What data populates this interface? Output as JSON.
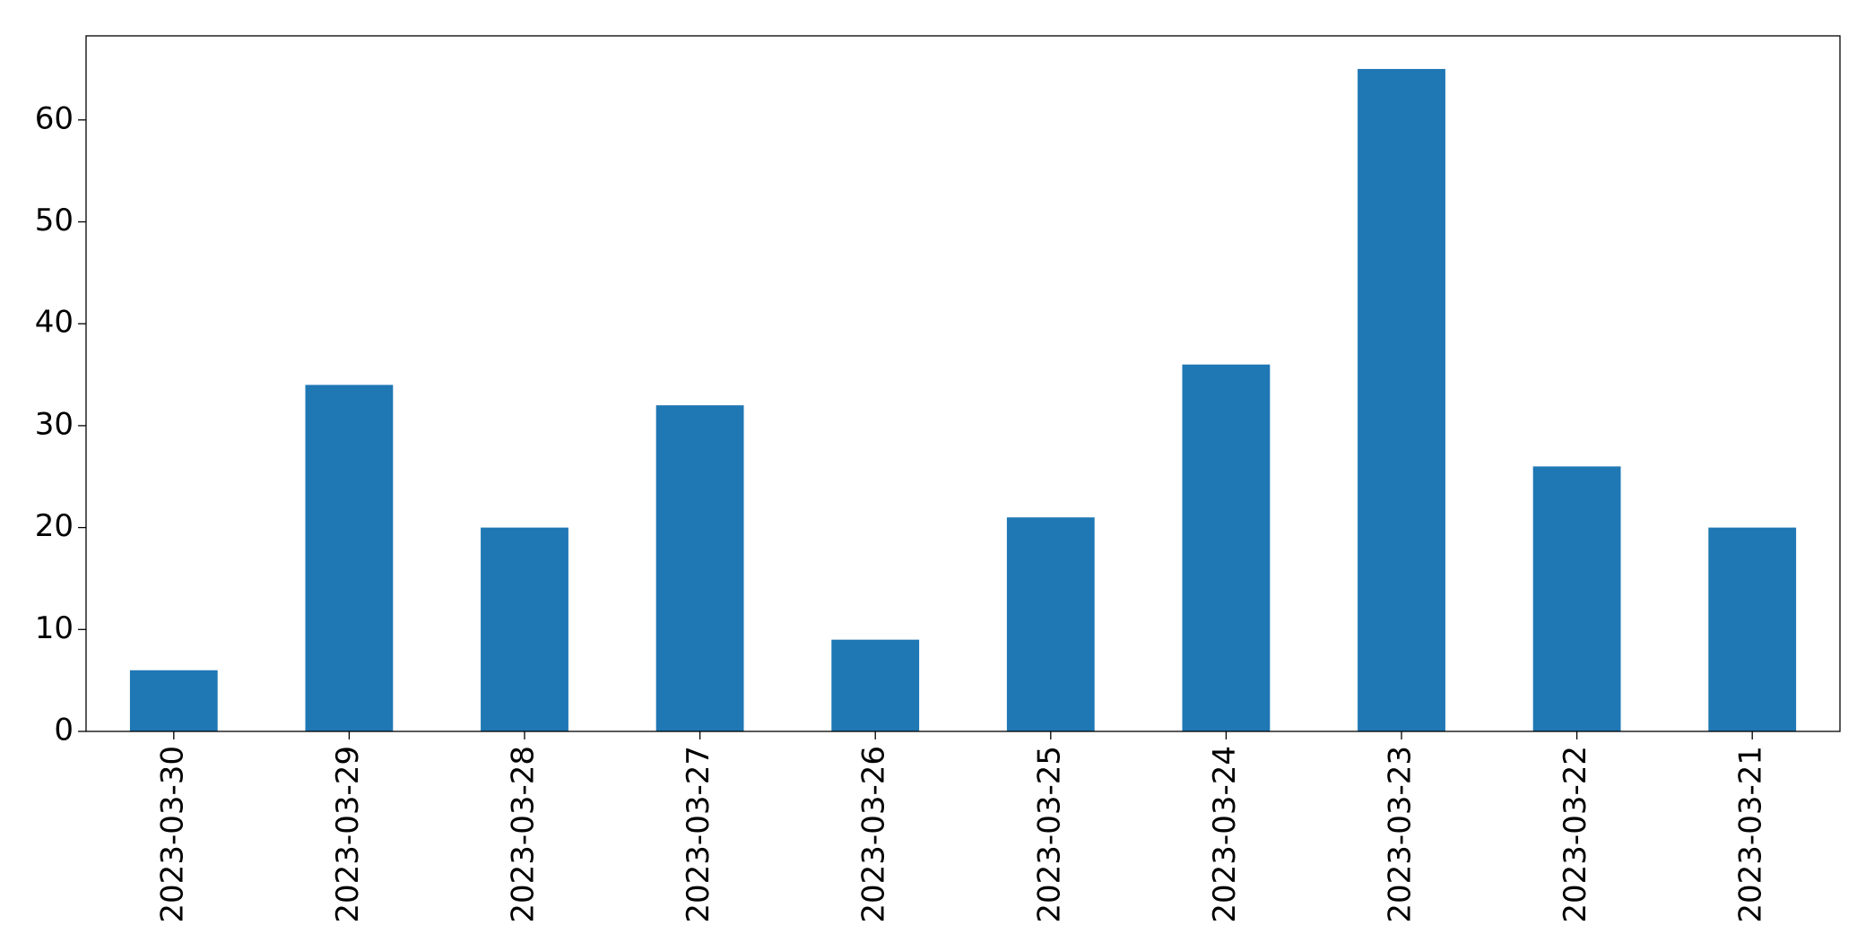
{
  "chart_data": {
    "type": "bar",
    "categories": [
      "2023-03-30",
      "2023-03-29",
      "2023-03-28",
      "2023-03-27",
      "2023-03-26",
      "2023-03-25",
      "2023-03-24",
      "2023-03-23",
      "2023-03-22",
      "2023-03-21"
    ],
    "values": [
      6,
      34,
      20,
      32,
      9,
      21,
      36,
      65,
      26,
      20
    ],
    "color": "#1f77b4",
    "ylim": [
      0,
      68.25
    ],
    "yticks": [
      0,
      10,
      20,
      30,
      40,
      50,
      60
    ],
    "grid": false
  }
}
